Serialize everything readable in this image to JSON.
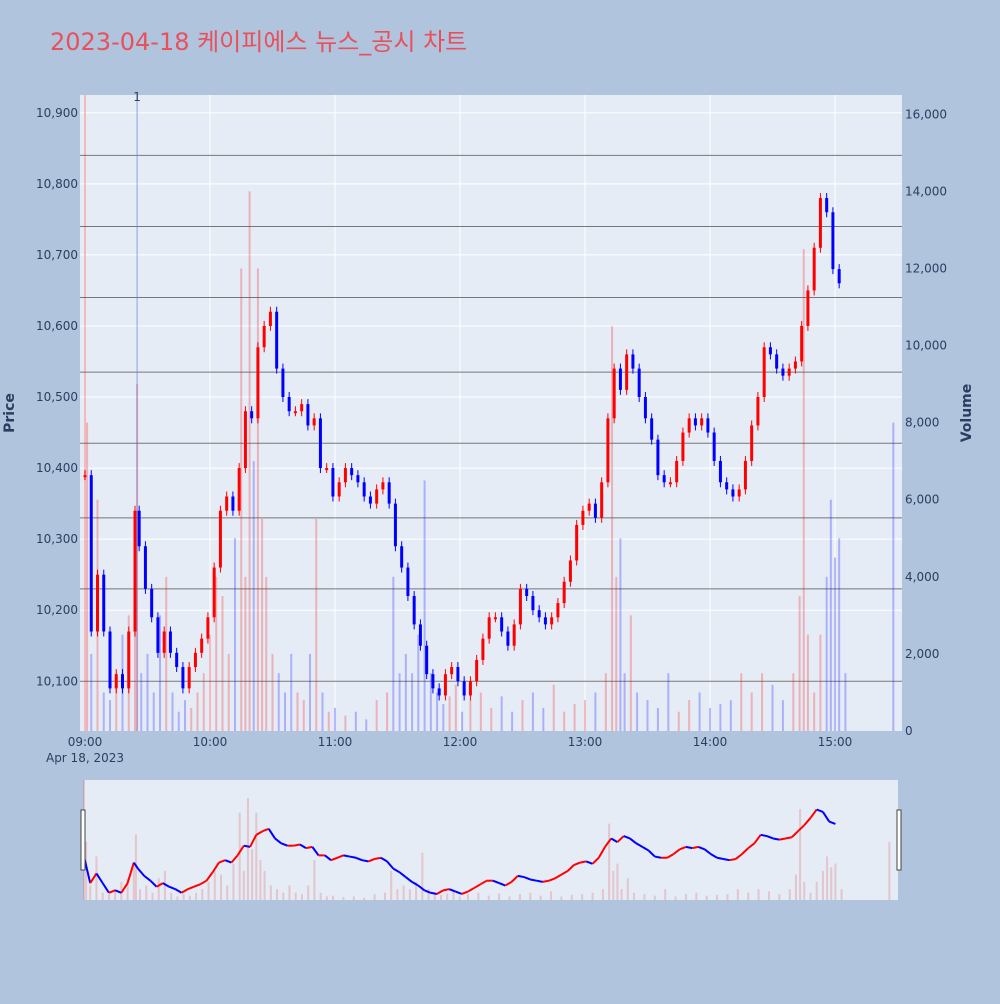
{
  "title": "2023-04-18 케이피에스 뉴스_공시 차트",
  "colors": {
    "background": "#b0c4de",
    "plot_bg": "#e5ecf6",
    "title": "#e8505b",
    "up": "#ff0000",
    "down": "#0000ff"
  },
  "chart_data": {
    "type": "candlestick",
    "xlabel": "",
    "ylabel": "Price",
    "y2label": "Volume",
    "x_ticks": [
      "09:00",
      "10:00",
      "11:00",
      "12:00",
      "13:00",
      "14:00",
      "15:00"
    ],
    "x_date_label": "Apr 18, 2023",
    "y_ticks": [
      "10,100",
      "10,200",
      "10,300",
      "10,400",
      "10,500",
      "10,600",
      "10,700",
      "10,800",
      "10,900"
    ],
    "y2_ticks": [
      "0",
      "2,000",
      "4,000",
      "6,000",
      "8,000",
      "10,000",
      "12,000",
      "14,000",
      "16,000"
    ],
    "ylim": [
      10030,
      10925
    ],
    "y2lim": [
      0,
      16500
    ],
    "annotation": "1",
    "annotation_time": "09:25",
    "time_range": [
      "09:00",
      "15:30"
    ],
    "horizontal_levels": [
      10100,
      10230,
      10330,
      10435,
      10535,
      10640,
      10740,
      10840
    ],
    "price_series": [
      [
        "09:00",
        10390
      ],
      [
        "09:03",
        10170
      ],
      [
        "09:06",
        10250
      ],
      [
        "09:09",
        10170
      ],
      [
        "09:12",
        10090
      ],
      [
        "09:15",
        10110
      ],
      [
        "09:18",
        10090
      ],
      [
        "09:21",
        10170
      ],
      [
        "09:24",
        10340
      ],
      [
        "09:26",
        10290
      ],
      [
        "09:29",
        10230
      ],
      [
        "09:32",
        10190
      ],
      [
        "09:35",
        10140
      ],
      [
        "09:38",
        10170
      ],
      [
        "09:41",
        10140
      ],
      [
        "09:44",
        10120
      ],
      [
        "09:47",
        10090
      ],
      [
        "09:50",
        10120
      ],
      [
        "09:53",
        10140
      ],
      [
        "09:56",
        10160
      ],
      [
        "09:59",
        10190
      ],
      [
        "10:02",
        10260
      ],
      [
        "10:05",
        10340
      ],
      [
        "10:08",
        10360
      ],
      [
        "10:11",
        10340
      ],
      [
        "10:14",
        10400
      ],
      [
        "10:17",
        10480
      ],
      [
        "10:20",
        10470
      ],
      [
        "10:23",
        10570
      ],
      [
        "10:26",
        10600
      ],
      [
        "10:29",
        10620
      ],
      [
        "10:32",
        10540
      ],
      [
        "10:35",
        10500
      ],
      [
        "10:38",
        10480
      ],
      [
        "10:41",
        10480
      ],
      [
        "10:44",
        10490
      ],
      [
        "10:47",
        10460
      ],
      [
        "10:50",
        10470
      ],
      [
        "10:53",
        10400
      ],
      [
        "10:56",
        10400
      ],
      [
        "10:59",
        10360
      ],
      [
        "11:02",
        10380
      ],
      [
        "11:05",
        10400
      ],
      [
        "11:08",
        10390
      ],
      [
        "11:11",
        10380
      ],
      [
        "11:14",
        10360
      ],
      [
        "11:17",
        10350
      ],
      [
        "11:20",
        10370
      ],
      [
        "11:23",
        10380
      ],
      [
        "11:26",
        10350
      ],
      [
        "11:29",
        10290
      ],
      [
        "11:32",
        10260
      ],
      [
        "11:35",
        10220
      ],
      [
        "11:38",
        10180
      ],
      [
        "11:41",
        10150
      ],
      [
        "11:44",
        10110
      ],
      [
        "11:47",
        10090
      ],
      [
        "11:50",
        10080
      ],
      [
        "11:53",
        10110
      ],
      [
        "11:56",
        10120
      ],
      [
        "11:59",
        10100
      ],
      [
        "12:02",
        10080
      ],
      [
        "12:05",
        10100
      ],
      [
        "12:08",
        10130
      ],
      [
        "12:11",
        10160
      ],
      [
        "12:14",
        10190
      ],
      [
        "12:17",
        10190
      ],
      [
        "12:20",
        10170
      ],
      [
        "12:23",
        10150
      ],
      [
        "12:26",
        10180
      ],
      [
        "12:29",
        10230
      ],
      [
        "12:32",
        10220
      ],
      [
        "12:35",
        10200
      ],
      [
        "12:38",
        10190
      ],
      [
        "12:41",
        10180
      ],
      [
        "12:44",
        10190
      ],
      [
        "12:47",
        10210
      ],
      [
        "12:50",
        10240
      ],
      [
        "12:53",
        10270
      ],
      [
        "12:56",
        10320
      ],
      [
        "12:59",
        10340
      ],
      [
        "13:02",
        10350
      ],
      [
        "13:05",
        10330
      ],
      [
        "13:08",
        10380
      ],
      [
        "13:11",
        10470
      ],
      [
        "13:14",
        10540
      ],
      [
        "13:17",
        10510
      ],
      [
        "13:20",
        10560
      ],
      [
        "13:23",
        10540
      ],
      [
        "13:26",
        10500
      ],
      [
        "13:29",
        10470
      ],
      [
        "13:32",
        10440
      ],
      [
        "13:35",
        10390
      ],
      [
        "13:38",
        10380
      ],
      [
        "13:41",
        10380
      ],
      [
        "13:44",
        10410
      ],
      [
        "13:47",
        10450
      ],
      [
        "13:50",
        10470
      ],
      [
        "13:53",
        10460
      ],
      [
        "13:56",
        10470
      ],
      [
        "13:59",
        10450
      ],
      [
        "14:02",
        10410
      ],
      [
        "14:05",
        10380
      ],
      [
        "14:08",
        10370
      ],
      [
        "14:11",
        10360
      ],
      [
        "14:14",
        10370
      ],
      [
        "14:17",
        10410
      ],
      [
        "14:20",
        10460
      ],
      [
        "14:23",
        10500
      ],
      [
        "14:26",
        10570
      ],
      [
        "14:29",
        10560
      ],
      [
        "14:32",
        10540
      ],
      [
        "14:35",
        10530
      ],
      [
        "14:38",
        10540
      ],
      [
        "14:41",
        10550
      ],
      [
        "14:44",
        10600
      ],
      [
        "14:47",
        10650
      ],
      [
        "14:50",
        10710
      ],
      [
        "14:53",
        10780
      ],
      [
        "14:56",
        10760
      ],
      [
        "14:59",
        10680
      ],
      [
        "15:02",
        10660
      ]
    ],
    "volume_series": [
      [
        "09:00",
        16500
      ],
      [
        "09:01",
        8000
      ],
      [
        "09:03",
        2000
      ],
      [
        "09:06",
        6000
      ],
      [
        "09:09",
        1000
      ],
      [
        "09:12",
        800
      ],
      [
        "09:15",
        1500
      ],
      [
        "09:18",
        2500
      ],
      [
        "09:21",
        3000
      ],
      [
        "09:24",
        5000
      ],
      [
        "09:25",
        9000
      ],
      [
        "09:27",
        1500
      ],
      [
        "09:30",
        2000
      ],
      [
        "09:33",
        1000
      ],
      [
        "09:36",
        3000
      ],
      [
        "09:39",
        4000
      ],
      [
        "09:42",
        1000
      ],
      [
        "09:45",
        500
      ],
      [
        "09:48",
        800
      ],
      [
        "09:51",
        600
      ],
      [
        "09:54",
        1000
      ],
      [
        "09:57",
        1500
      ],
      [
        "10:00",
        2500
      ],
      [
        "10:03",
        4000
      ],
      [
        "10:06",
        3500
      ],
      [
        "10:09",
        2000
      ],
      [
        "10:12",
        5000
      ],
      [
        "10:15",
        12000
      ],
      [
        "10:17",
        4000
      ],
      [
        "10:19",
        14000
      ],
      [
        "10:21",
        7000
      ],
      [
        "10:23",
        12000
      ],
      [
        "10:25",
        5500
      ],
      [
        "10:27",
        4000
      ],
      [
        "10:30",
        2000
      ],
      [
        "10:33",
        1500
      ],
      [
        "10:36",
        1000
      ],
      [
        "10:39",
        2000
      ],
      [
        "10:42",
        1000
      ],
      [
        "10:45",
        800
      ],
      [
        "10:48",
        2000
      ],
      [
        "10:51",
        5500
      ],
      [
        "10:54",
        1000
      ],
      [
        "10:57",
        500
      ],
      [
        "11:00",
        600
      ],
      [
        "11:05",
        400
      ],
      [
        "11:10",
        500
      ],
      [
        "11:15",
        300
      ],
      [
        "11:20",
        800
      ],
      [
        "11:25",
        1000
      ],
      [
        "11:28",
        4000
      ],
      [
        "11:31",
        1500
      ],
      [
        "11:34",
        2000
      ],
      [
        "11:37",
        1500
      ],
      [
        "11:40",
        2500
      ],
      [
        "11:43",
        6500
      ],
      [
        "11:46",
        1500
      ],
      [
        "11:49",
        1000
      ],
      [
        "11:52",
        700
      ],
      [
        "11:55",
        900
      ],
      [
        "11:58",
        1200
      ],
      [
        "12:01",
        500
      ],
      [
        "12:05",
        800
      ],
      [
        "12:10",
        1000
      ],
      [
        "12:15",
        600
      ],
      [
        "12:20",
        900
      ],
      [
        "12:25",
        500
      ],
      [
        "12:30",
        800
      ],
      [
        "12:35",
        1000
      ],
      [
        "12:40",
        600
      ],
      [
        "12:45",
        1200
      ],
      [
        "12:50",
        500
      ],
      [
        "12:55",
        700
      ],
      [
        "13:00",
        800
      ],
      [
        "13:05",
        1000
      ],
      [
        "13:10",
        1500
      ],
      [
        "13:13",
        10500
      ],
      [
        "13:15",
        4000
      ],
      [
        "13:17",
        5000
      ],
      [
        "13:19",
        1500
      ],
      [
        "13:22",
        3000
      ],
      [
        "13:25",
        1000
      ],
      [
        "13:30",
        800
      ],
      [
        "13:35",
        600
      ],
      [
        "13:40",
        1500
      ],
      [
        "13:45",
        500
      ],
      [
        "13:50",
        800
      ],
      [
        "13:55",
        1000
      ],
      [
        "14:00",
        600
      ],
      [
        "14:05",
        700
      ],
      [
        "14:10",
        800
      ],
      [
        "14:15",
        1500
      ],
      [
        "14:20",
        1000
      ],
      [
        "14:25",
        1500
      ],
      [
        "14:30",
        1200
      ],
      [
        "14:35",
        800
      ],
      [
        "14:40",
        1500
      ],
      [
        "14:43",
        3500
      ],
      [
        "14:45",
        12500
      ],
      [
        "14:47",
        2500
      ],
      [
        "14:50",
        1000
      ],
      [
        "14:53",
        2500
      ],
      [
        "14:56",
        4000
      ],
      [
        "14:58",
        6000
      ],
      [
        "15:00",
        4500
      ],
      [
        "15:02",
        5000
      ],
      [
        "15:05",
        1500
      ],
      [
        "15:28",
        8000
      ]
    ]
  }
}
